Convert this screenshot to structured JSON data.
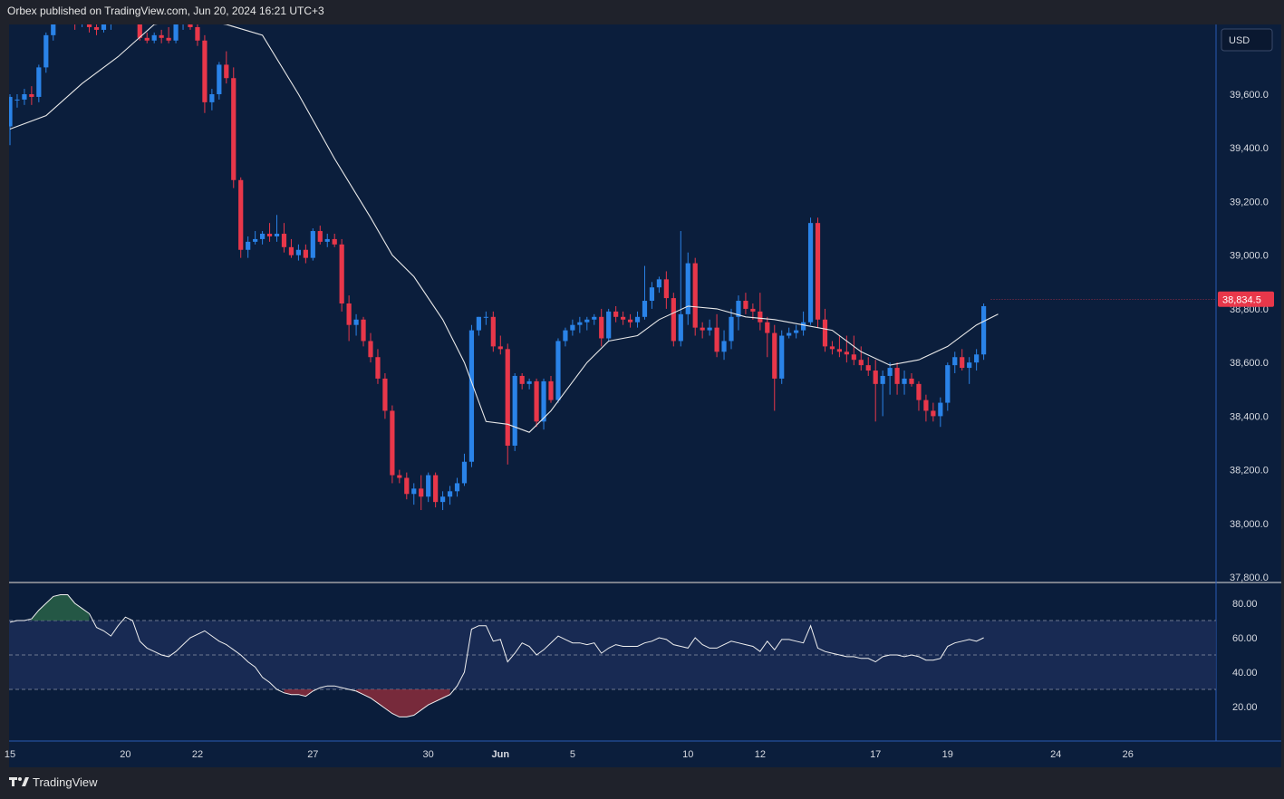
{
  "header": {
    "published": "Orbex published on TradingView.com, Jun 20, 2024 16:21 UTC+3"
  },
  "footer": {
    "brand": "TradingView",
    "logo": "tradingview-logo-icon"
  },
  "colors": {
    "background": "#0b1e3c",
    "panel_bg": "#0a1d3b",
    "up": "#2a83e8",
    "down": "#e8374a",
    "ma": "#e8e8e8",
    "rsi_band": "#1b2d58",
    "price_tag": "#e8374a",
    "axis_text": "#d8dbe2"
  },
  "chart_data": {
    "type": "candlestick",
    "currency_label": "USD",
    "last_price_label": "38,834.5",
    "last_price": 38834.5,
    "ylim": [
      37780,
      39860
    ],
    "y_ticks": [
      {
        "value": 39600,
        "label": "39,600.0"
      },
      {
        "value": 39400,
        "label": "39,400.0"
      },
      {
        "value": 39200,
        "label": "39,200.0"
      },
      {
        "value": 39000,
        "label": "39,000.0"
      },
      {
        "value": 38800,
        "label": "38,800.0"
      },
      {
        "value": 38600,
        "label": "38,600.0"
      },
      {
        "value": 38400,
        "label": "38,400.0"
      },
      {
        "value": 38200,
        "label": "38,200.0"
      },
      {
        "value": 38000,
        "label": "38,000.0"
      },
      {
        "value": 37800,
        "label": "37,800.0"
      }
    ],
    "x_ticks": [
      {
        "idx": 0,
        "label": "15"
      },
      {
        "idx": 16,
        "label": "20"
      },
      {
        "idx": 26,
        "label": "22"
      },
      {
        "idx": 42,
        "label": "27"
      },
      {
        "idx": 58,
        "label": "30"
      },
      {
        "idx": 68,
        "label": "Jun"
      },
      {
        "idx": 78,
        "label": "5"
      },
      {
        "idx": 94,
        "label": "10"
      },
      {
        "idx": 104,
        "label": "12"
      },
      {
        "idx": 120,
        "label": "17"
      },
      {
        "idx": 130,
        "label": "19"
      },
      {
        "idx": 145,
        "label": "24"
      },
      {
        "idx": 155,
        "label": "26"
      }
    ],
    "ma_path": [
      [
        0,
        39470
      ],
      [
        5,
        39520
      ],
      [
        10,
        39640
      ],
      [
        15,
        39740
      ],
      [
        20,
        39860
      ],
      [
        25,
        39880
      ],
      [
        30,
        39860
      ],
      [
        35,
        39820
      ],
      [
        40,
        39600
      ],
      [
        45,
        39360
      ],
      [
        50,
        39140
      ],
      [
        53,
        39000
      ],
      [
        56,
        38920
      ],
      [
        60,
        38760
      ],
      [
        63,
        38600
      ],
      [
        66,
        38380
      ],
      [
        69,
        38370
      ],
      [
        72,
        38340
      ],
      [
        75,
        38420
      ],
      [
        80,
        38600
      ],
      [
        83,
        38680
      ],
      [
        87,
        38700
      ],
      [
        90,
        38760
      ],
      [
        94,
        38810
      ],
      [
        98,
        38800
      ],
      [
        102,
        38770
      ],
      [
        106,
        38760
      ],
      [
        110,
        38740
      ],
      [
        114,
        38720
      ],
      [
        118,
        38640
      ],
      [
        122,
        38590
      ],
      [
        126,
        38610
      ],
      [
        130,
        38660
      ],
      [
        134,
        38740
      ],
      [
        137,
        38780
      ]
    ],
    "candles": [
      [
        0,
        39480,
        39600,
        39410,
        39590
      ],
      [
        1,
        39580,
        39600,
        39550,
        39580
      ],
      [
        2,
        39580,
        39620,
        39560,
        39600
      ],
      [
        3,
        39600,
        39630,
        39560,
        39590
      ],
      [
        4,
        39590,
        39710,
        39570,
        39700
      ],
      [
        5,
        39700,
        39830,
        39680,
        39820
      ],
      [
        6,
        39820,
        39900,
        39800,
        39880
      ],
      [
        7,
        39880,
        39940,
        39860,
        39920
      ],
      [
        8,
        39920,
        39950,
        39860,
        39870
      ],
      [
        9,
        39870,
        39890,
        39840,
        39860
      ],
      [
        10,
        39860,
        39900,
        39850,
        39880
      ],
      [
        11,
        39880,
        39920,
        39830,
        39850
      ],
      [
        12,
        39850,
        39870,
        39820,
        39840
      ],
      [
        13,
        39840,
        39880,
        39830,
        39860
      ],
      [
        14,
        39860,
        39920,
        39840,
        39900
      ],
      [
        15,
        39900,
        39920,
        39860,
        39880
      ],
      [
        16,
        39880,
        39950,
        39860,
        39930
      ],
      [
        17,
        39930,
        39960,
        39900,
        39920
      ],
      [
        18,
        39920,
        39940,
        39800,
        39810
      ],
      [
        19,
        39810,
        39830,
        39790,
        39800
      ],
      [
        20,
        39800,
        39830,
        39790,
        39820
      ],
      [
        21,
        39820,
        39840,
        39790,
        39810
      ],
      [
        22,
        39810,
        39850,
        39790,
        39800
      ],
      [
        23,
        39800,
        39870,
        39790,
        39860
      ],
      [
        24,
        39860,
        39880,
        39840,
        39870
      ],
      [
        25,
        39870,
        39880,
        39840,
        39850
      ],
      [
        26,
        39850,
        39870,
        39780,
        39800
      ],
      [
        27,
        39800,
        39820,
        39530,
        39570
      ],
      [
        28,
        39570,
        39620,
        39540,
        39600
      ],
      [
        29,
        39600,
        39720,
        39580,
        39710
      ],
      [
        30,
        39710,
        39760,
        39640,
        39660
      ],
      [
        31,
        39660,
        39700,
        39250,
        39280
      ],
      [
        32,
        39280,
        39290,
        38990,
        39020
      ],
      [
        33,
        39020,
        39070,
        38990,
        39050
      ],
      [
        34,
        39050,
        39090,
        39040,
        39060
      ],
      [
        35,
        39060,
        39090,
        39040,
        39080
      ],
      [
        36,
        39080,
        39120,
        39050,
        39070
      ],
      [
        37,
        39070,
        39150,
        39050,
        39080
      ],
      [
        38,
        39080,
        39120,
        39010,
        39030
      ],
      [
        39,
        39030,
        39060,
        38990,
        39000
      ],
      [
        40,
        39000,
        39040,
        38980,
        39020
      ],
      [
        41,
        39020,
        39040,
        38970,
        38990
      ],
      [
        42,
        38990,
        39100,
        38980,
        39090
      ],
      [
        43,
        39090,
        39110,
        39040,
        39050
      ],
      [
        44,
        39050,
        39080,
        39030,
        39060
      ],
      [
        45,
        39060,
        39080,
        39030,
        39040
      ],
      [
        46,
        39040,
        39060,
        38790,
        38820
      ],
      [
        47,
        38820,
        38850,
        38680,
        38740
      ],
      [
        48,
        38740,
        38780,
        38700,
        38760
      ],
      [
        49,
        38760,
        38770,
        38660,
        38680
      ],
      [
        50,
        38680,
        38710,
        38600,
        38620
      ],
      [
        51,
        38620,
        38650,
        38520,
        38540
      ],
      [
        52,
        38540,
        38560,
        38390,
        38420
      ],
      [
        53,
        38420,
        38440,
        38150,
        38180
      ],
      [
        54,
        38180,
        38200,
        38150,
        38170
      ],
      [
        55,
        38170,
        38190,
        38090,
        38110
      ],
      [
        56,
        38110,
        38150,
        38070,
        38130
      ],
      [
        57,
        38130,
        38180,
        38050,
        38100
      ],
      [
        58,
        38100,
        38190,
        38080,
        38180
      ],
      [
        59,
        38180,
        38190,
        38060,
        38080
      ],
      [
        60,
        38080,
        38120,
        38050,
        38100
      ],
      [
        61,
        38100,
        38140,
        38070,
        38120
      ],
      [
        62,
        38120,
        38170,
        38100,
        38150
      ],
      [
        63,
        38150,
        38260,
        38140,
        38230
      ],
      [
        64,
        38230,
        38740,
        38210,
        38720
      ],
      [
        65,
        38720,
        38770,
        38700,
        38770
      ],
      [
        66,
        38770,
        38790,
        38740,
        38770
      ],
      [
        67,
        38770,
        38790,
        38640,
        38660
      ],
      [
        68,
        38660,
        38700,
        38630,
        38650
      ],
      [
        69,
        38650,
        38670,
        38220,
        38290
      ],
      [
        70,
        38290,
        38560,
        38270,
        38550
      ],
      [
        71,
        38550,
        38560,
        38500,
        38520
      ],
      [
        72,
        38520,
        38540,
        38500,
        38530
      ],
      [
        73,
        38530,
        38540,
        38360,
        38380
      ],
      [
        74,
        38380,
        38540,
        38350,
        38530
      ],
      [
        75,
        38530,
        38550,
        38450,
        38460
      ],
      [
        76,
        38460,
        38690,
        38450,
        38680
      ],
      [
        77,
        38680,
        38730,
        38660,
        38720
      ],
      [
        78,
        38720,
        38760,
        38700,
        38740
      ],
      [
        79,
        38740,
        38770,
        38710,
        38750
      ],
      [
        80,
        38750,
        38770,
        38720,
        38760
      ],
      [
        81,
        38760,
        38780,
        38740,
        38770
      ],
      [
        82,
        38770,
        38800,
        38660,
        38690
      ],
      [
        83,
        38690,
        38800,
        38680,
        38790
      ],
      [
        84,
        38790,
        38810,
        38750,
        38770
      ],
      [
        85,
        38770,
        38790,
        38740,
        38760
      ],
      [
        86,
        38760,
        38780,
        38730,
        38750
      ],
      [
        87,
        38750,
        38790,
        38730,
        38770
      ],
      [
        88,
        38770,
        38960,
        38760,
        38830
      ],
      [
        89,
        38830,
        38900,
        38800,
        38880
      ],
      [
        90,
        38880,
        38920,
        38860,
        38910
      ],
      [
        91,
        38910,
        38940,
        38800,
        38840
      ],
      [
        92,
        38840,
        38860,
        38660,
        38680
      ],
      [
        93,
        38680,
        39090,
        38660,
        38780
      ],
      [
        94,
        38780,
        39010,
        38740,
        38970
      ],
      [
        95,
        38970,
        38990,
        38700,
        38730
      ],
      [
        96,
        38730,
        38750,
        38690,
        38720
      ],
      [
        97,
        38720,
        38760,
        38700,
        38730
      ],
      [
        98,
        38730,
        38780,
        38620,
        38640
      ],
      [
        99,
        38640,
        38720,
        38610,
        38680
      ],
      [
        100,
        38680,
        38800,
        38650,
        38770
      ],
      [
        101,
        38770,
        38850,
        38720,
        38830
      ],
      [
        102,
        38830,
        38860,
        38780,
        38800
      ],
      [
        103,
        38800,
        38820,
        38760,
        38790
      ],
      [
        104,
        38790,
        38860,
        38720,
        38750
      ],
      [
        105,
        38750,
        38770,
        38620,
        38710
      ],
      [
        106,
        38710,
        38740,
        38420,
        38540
      ],
      [
        107,
        38540,
        38720,
        38520,
        38700
      ],
      [
        108,
        38700,
        38730,
        38690,
        38710
      ],
      [
        109,
        38710,
        38740,
        38690,
        38720
      ],
      [
        110,
        38720,
        38790,
        38700,
        38750
      ],
      [
        111,
        38750,
        39140,
        38740,
        39120
      ],
      [
        112,
        39120,
        39140,
        38730,
        38760
      ],
      [
        113,
        38760,
        38800,
        38640,
        38660
      ],
      [
        114,
        38660,
        38680,
        38630,
        38650
      ],
      [
        115,
        38650,
        38700,
        38620,
        38640
      ],
      [
        116,
        38640,
        38700,
        38600,
        38630
      ],
      [
        117,
        38630,
        38700,
        38590,
        38610
      ],
      [
        118,
        38610,
        38660,
        38570,
        38590
      ],
      [
        119,
        38590,
        38620,
        38550,
        38570
      ],
      [
        120,
        38570,
        38610,
        38380,
        38520
      ],
      [
        121,
        38520,
        38570,
        38400,
        38550
      ],
      [
        122,
        38550,
        38600,
        38480,
        38580
      ],
      [
        123,
        38580,
        38600,
        38480,
        38520
      ],
      [
        124,
        38520,
        38570,
        38480,
        38540
      ],
      [
        125,
        38540,
        38560,
        38510,
        38520
      ],
      [
        126,
        38520,
        38530,
        38420,
        38460
      ],
      [
        127,
        38460,
        38480,
        38380,
        38420
      ],
      [
        128,
        38420,
        38450,
        38380,
        38400
      ],
      [
        129,
        38400,
        38470,
        38360,
        38450
      ],
      [
        130,
        38450,
        38600,
        38420,
        38590
      ],
      [
        131,
        38590,
        38640,
        38560,
        38620
      ],
      [
        132,
        38620,
        38650,
        38570,
        38580
      ],
      [
        133,
        38580,
        38620,
        38520,
        38600
      ],
      [
        134,
        38600,
        38650,
        38570,
        38630
      ],
      [
        135,
        38630,
        38820,
        38610,
        38810
      ]
    ],
    "rsi": {
      "levels": [
        70,
        50,
        30
      ],
      "ylim": [
        0,
        90
      ],
      "y_ticks": [
        {
          "value": 80,
          "label": "80.00"
        },
        {
          "value": 60,
          "label": "60.00"
        },
        {
          "value": 40,
          "label": "40.00"
        },
        {
          "value": 20,
          "label": "20.00"
        }
      ],
      "values": [
        69,
        70,
        70,
        71,
        76,
        80,
        84,
        85,
        85,
        80,
        77,
        74,
        66,
        64,
        61,
        67,
        72,
        70,
        58,
        54,
        52,
        50,
        49,
        52,
        56,
        60,
        62,
        64,
        61,
        58,
        56,
        53,
        50,
        46,
        43,
        37,
        34,
        30,
        28,
        27,
        27,
        26,
        29,
        31,
        32,
        32,
        31,
        30,
        29,
        27,
        25,
        22,
        19,
        16,
        14,
        14,
        15,
        18,
        21,
        23,
        25,
        27,
        32,
        40,
        65,
        67,
        67,
        58,
        59,
        46,
        51,
        57,
        55,
        50,
        53,
        57,
        61,
        59,
        57,
        57,
        56,
        57,
        51,
        54,
        56,
        55,
        55,
        55,
        57,
        58,
        60,
        59,
        56,
        55,
        54,
        60,
        56,
        54,
        54,
        56,
        58,
        57,
        56,
        55,
        52,
        58,
        53,
        59,
        59,
        58,
        57,
        67,
        54,
        52,
        51,
        50,
        49,
        49,
        48,
        48,
        46,
        49,
        50,
        50,
        49,
        50,
        49,
        47,
        47,
        48,
        55,
        57,
        58,
        59,
        58,
        60
      ]
    }
  }
}
